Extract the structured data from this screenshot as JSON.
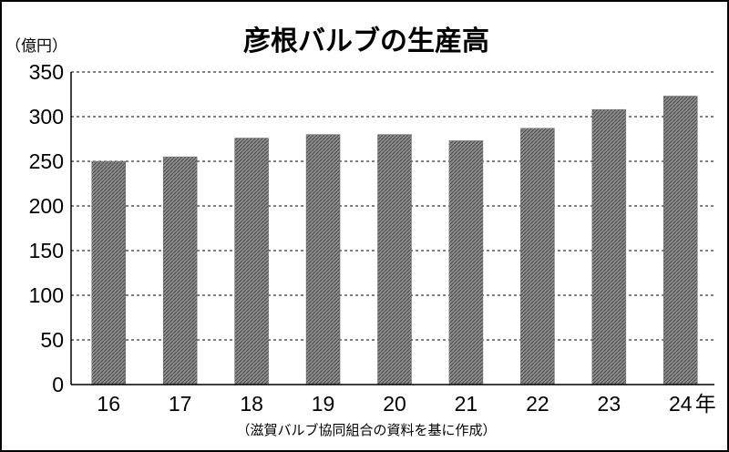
{
  "chart_data": {
    "type": "bar",
    "title": "彦根バルブの生産高",
    "unit_label": "（億円）",
    "categories": [
      "16",
      "17",
      "18",
      "19",
      "20",
      "21",
      "22",
      "23",
      "24"
    ],
    "category_suffix": "年",
    "values": [
      250,
      255,
      276,
      280,
      280,
      273,
      287,
      308,
      323
    ],
    "ylim": [
      0,
      350
    ],
    "yticks": [
      "0",
      "50",
      "100",
      "150",
      "200",
      "250",
      "300",
      "350"
    ],
    "grid": "dashed-horizontal",
    "source_note": "（滋賀バルブ協同組合の資料を基に作成）",
    "bar_fill": "#7a7a7a",
    "grid_color": "#000000"
  }
}
